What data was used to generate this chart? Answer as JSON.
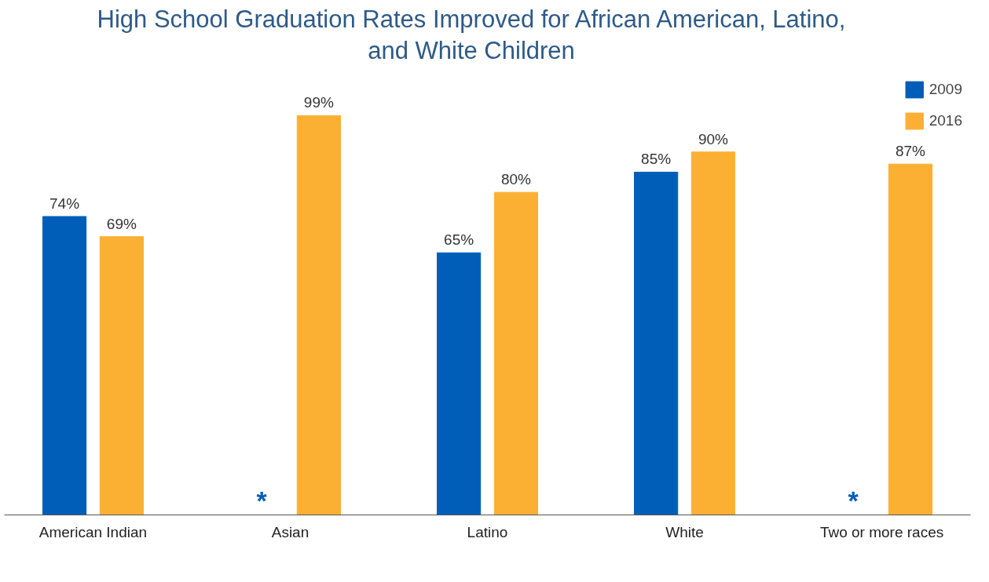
{
  "chart_data": {
    "type": "bar",
    "title": "High School Graduation Rates Improved for African American, Latino, and White Children",
    "categories": [
      "American Indian",
      "Asian",
      "Latino",
      "White",
      "Two or more races"
    ],
    "series": [
      {
        "name": "2009",
        "color": "#005eb8",
        "values": [
          74,
          null,
          65,
          85,
          null
        ],
        "value_labels": [
          "74%",
          null,
          "65%",
          "85%",
          null
        ]
      },
      {
        "name": "2016",
        "color": "#fbb034",
        "values": [
          69,
          99,
          80,
          90,
          87
        ],
        "value_labels": [
          "69%",
          "99%",
          "80%",
          "90%",
          "87%"
        ]
      }
    ],
    "annotations": [
      "*",
      "*"
    ],
    "tick_labels": "x",
    "grid": false,
    "legend": "top right"
  }
}
